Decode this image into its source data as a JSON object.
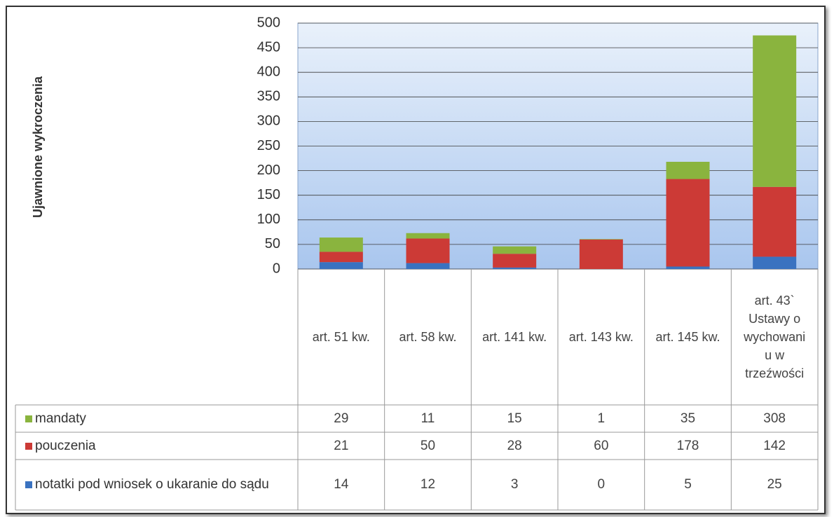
{
  "chart_data": {
    "type": "stacked_bar",
    "y_label": "Ujawnione wykroczenia",
    "categories": [
      "art. 51 kw.",
      "art. 58 kw.",
      "art. 141 kw.",
      "art. 143 kw.",
      "art. 145 kw.",
      "art. 43` Ustawy o wychowaniu w trzeźwości"
    ],
    "series": [
      {
        "name": "mandaty",
        "color": "#8ab43e",
        "values": [
          29,
          11,
          15,
          1,
          35,
          308
        ]
      },
      {
        "name": "pouczenia",
        "color": "#cc3a36",
        "values": [
          21,
          50,
          28,
          60,
          178,
          142
        ]
      },
      {
        "name": "notatki pod wniosek o ukaranie do sądu",
        "color": "#3a72c0",
        "values": [
          14,
          12,
          3,
          0,
          5,
          25
        ]
      }
    ],
    "ylim": [
      0,
      500
    ],
    "yticks": [
      0,
      50,
      100,
      150,
      200,
      250,
      300,
      350,
      400,
      450,
      500
    ],
    "grid": true
  }
}
